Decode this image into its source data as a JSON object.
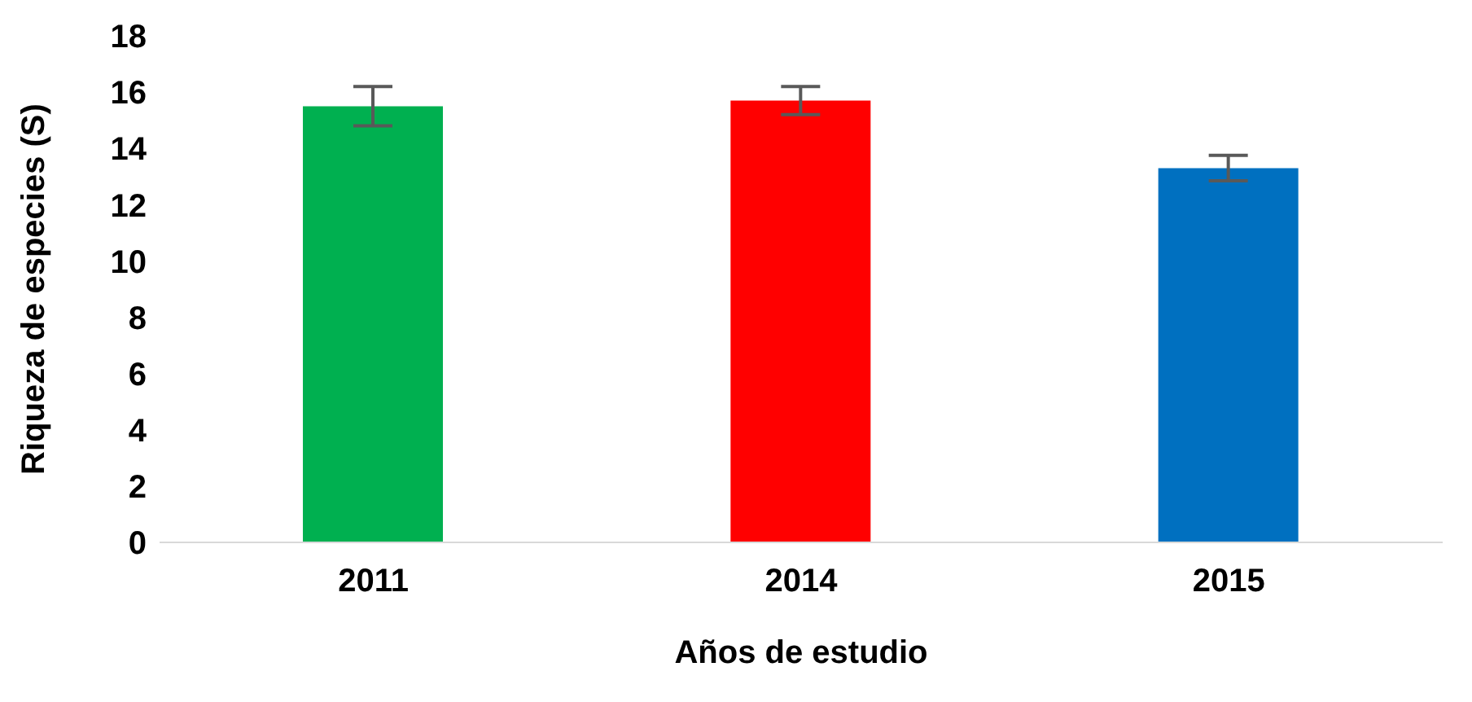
{
  "chart_data": {
    "type": "bar",
    "xlabel": "Años de estudio",
    "ylabel": "Riqueza de especies (S)",
    "categories": [
      "2011",
      "2014",
      "2015"
    ],
    "values": [
      15.5,
      15.7,
      13.3
    ],
    "colors": [
      "#00b050",
      "#ff0000",
      "#0070c0"
    ],
    "errors": [
      0.7,
      0.5,
      0.45
    ],
    "ylim": [
      0,
      18
    ],
    "yticks": [
      0,
      2,
      4,
      6,
      8,
      10,
      12,
      14,
      16,
      18
    ],
    "grid": false,
    "legend": false
  }
}
